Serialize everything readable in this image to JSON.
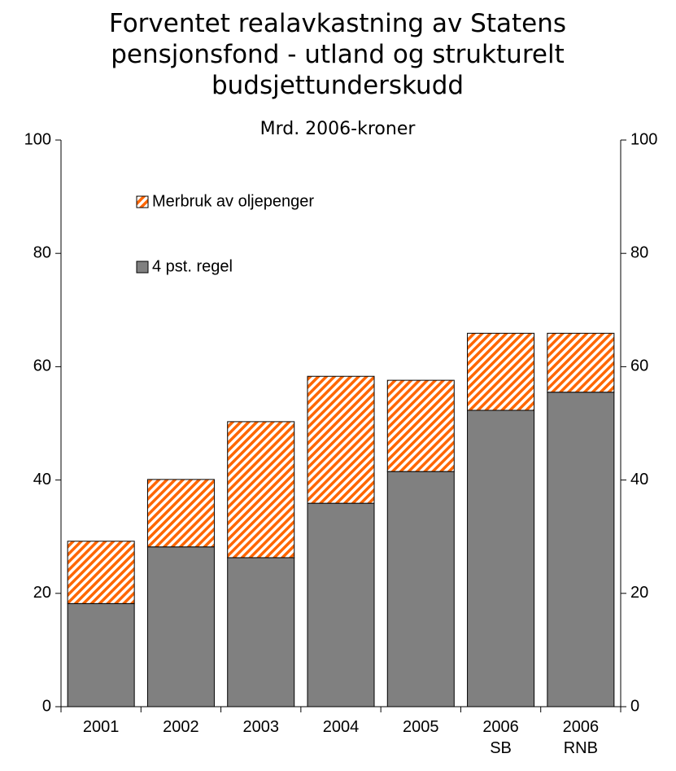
{
  "chart_data": {
    "type": "stacked_bar",
    "title": "Forventet realavkastning av Statens pensjonsfond - utland og strukturelt budsjettunderskudd",
    "subtitle": "Mrd. 2006-kroner",
    "categories": [
      "2001",
      "2002",
      "2003",
      "2004",
      "2005",
      "2006 SB",
      "2006 RNB"
    ],
    "series": [
      {
        "name": "4 pst. regel",
        "color": "#808080",
        "values": [
          18.2,
          28.2,
          26.3,
          35.9,
          41.5,
          52.3,
          55.5
        ]
      },
      {
        "name": "Merbruk av oljepenger",
        "color": "#ff6600",
        "pattern": "hatch",
        "values": [
          11.0,
          11.9,
          24.0,
          22.4,
          16.1,
          13.6,
          10.4
        ]
      }
    ],
    "ylim": [
      0,
      100
    ],
    "yticks": [
      0,
      20,
      40,
      60,
      80,
      100
    ],
    "y2lim": [
      0,
      100
    ],
    "y2ticks": [
      0,
      20,
      40,
      60,
      80,
      100
    ],
    "grid": false,
    "legend": "top-left"
  }
}
